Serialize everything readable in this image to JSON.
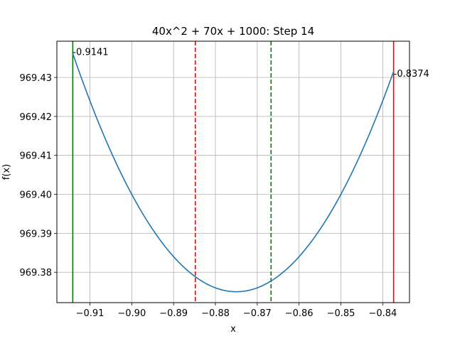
{
  "chart_data": {
    "type": "line",
    "title": "40x^2 + 70x + 1000: Step 14",
    "xlabel": "x",
    "ylabel": "f(x)",
    "xlim": [
      -0.9179,
      -0.8336
    ],
    "ylim": [
      969.3722,
      969.4393
    ],
    "grid": true,
    "function": {
      "a": 40,
      "b": 70,
      "c": 1000
    },
    "curve_range": [
      -0.9141,
      -0.8374
    ],
    "line_color": "#1f77b4",
    "x_ticks": [
      {
        "value": -0.91,
        "label": "−0.91"
      },
      {
        "value": -0.9,
        "label": "−0.90"
      },
      {
        "value": -0.89,
        "label": "−0.89"
      },
      {
        "value": -0.88,
        "label": "−0.88"
      },
      {
        "value": -0.87,
        "label": "−0.87"
      },
      {
        "value": -0.86,
        "label": "−0.86"
      },
      {
        "value": -0.85,
        "label": "−0.85"
      },
      {
        "value": -0.84,
        "label": "−0.84"
      }
    ],
    "y_ticks": [
      {
        "value": 969.38,
        "label": "969.38"
      },
      {
        "value": 969.39,
        "label": "969.39"
      },
      {
        "value": 969.4,
        "label": "969.40"
      },
      {
        "value": 969.41,
        "label": "969.41"
      },
      {
        "value": 969.42,
        "label": "969.42"
      },
      {
        "value": 969.43,
        "label": "969.43"
      }
    ],
    "vlines": [
      {
        "x": -0.9141,
        "color": "#008000",
        "style": "solid"
      },
      {
        "x": -0.8374,
        "color": "#ff0000",
        "style": "solid"
      },
      {
        "x": -0.8848,
        "color": "#ff0000",
        "style": "dashed"
      },
      {
        "x": -0.8667,
        "color": "#008000",
        "style": "dashed"
      }
    ],
    "annotations": [
      {
        "x": -0.9141,
        "y": 969.4367,
        "text": "-0.9141"
      },
      {
        "x": -0.8374,
        "y": 969.4311,
        "text": "-0.8374"
      }
    ]
  }
}
